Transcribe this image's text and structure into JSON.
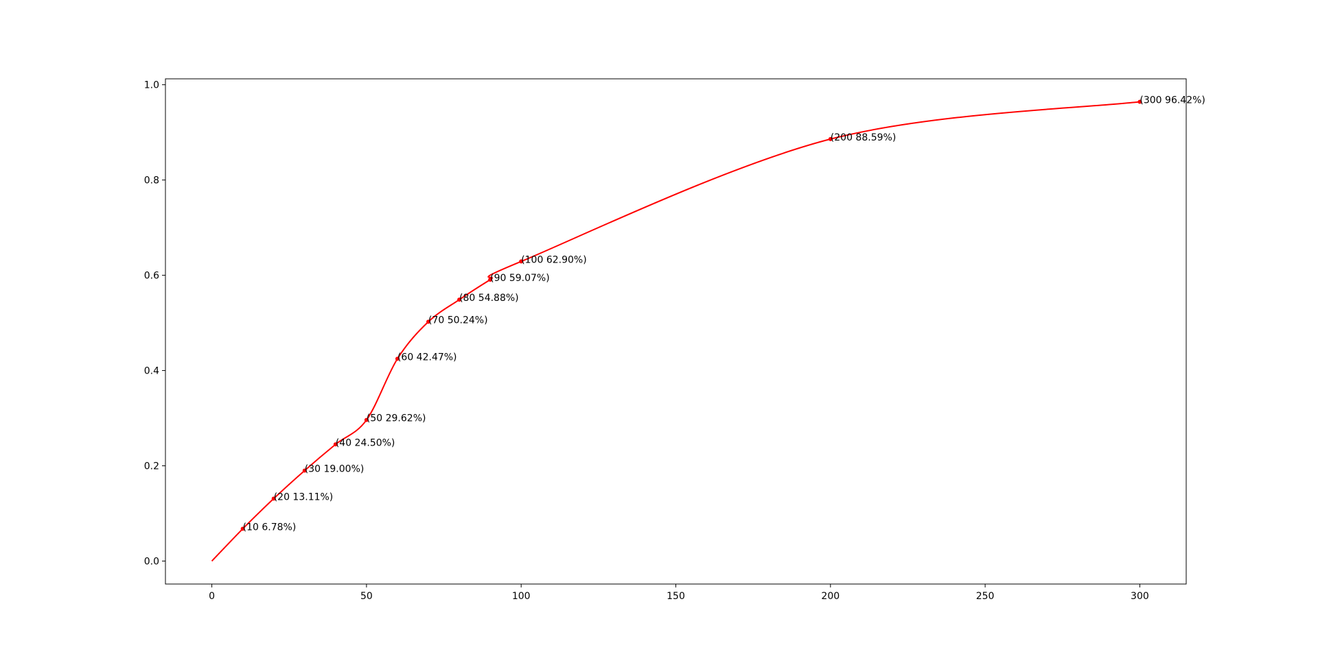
{
  "chart_data": {
    "type": "line",
    "x": [
      0,
      10,
      20,
      30,
      40,
      50,
      60,
      70,
      80,
      90,
      100,
      200,
      300
    ],
    "series": [
      {
        "color": "#ff0000",
        "values": [
          0,
          0.0678,
          0.1311,
          0.19,
          0.245,
          0.2962,
          0.4247,
          0.5024,
          0.5488,
          0.5907,
          0.629,
          0.8859,
          0.9642
        ],
        "value_labels": [
          null,
          "(10 6.78%)",
          "(20 13.11%)",
          "(30 19.00%)",
          "(40 24.50%)",
          "(50 29.62%)",
          "(60 42.47%)",
          "(70 50.24%)",
          "(80 54.88%)",
          "(90 59.07%)",
          "(100 62.90%)",
          "(200 88.59%)",
          "(300 96.42%)"
        ]
      }
    ],
    "xlim": [
      -15,
      315
    ],
    "ylim": [
      -0.0482,
      1.0124
    ],
    "xticks": [
      0,
      50,
      100,
      150,
      200,
      250,
      300
    ],
    "yticks": [
      {
        "value": 0,
        "label": "0.0"
      },
      0.2,
      0.4,
      0.6,
      0.8,
      {
        "value": 1,
        "label": "1.0"
      }
    ],
    "smooth": true
  }
}
